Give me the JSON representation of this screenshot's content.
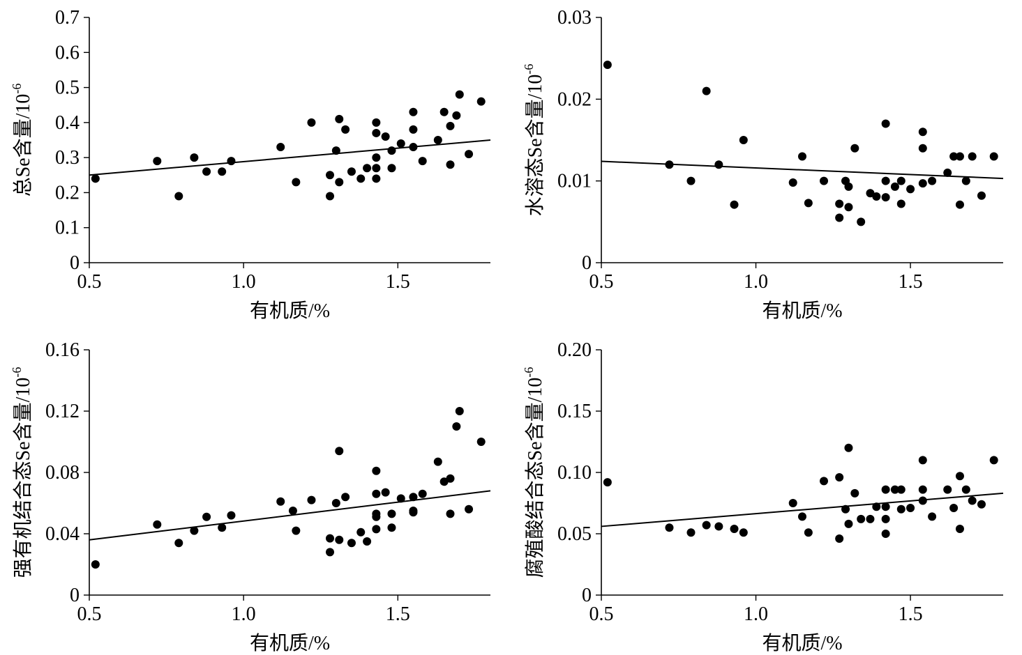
{
  "chart_data": [
    {
      "type": "scatter",
      "xlabel": "有机质/%",
      "ylabel": "总Se含量/10",
      "ylabel_sup": "-6",
      "xlim": [
        0.5,
        1.8
      ],
      "ylim": [
        0,
        0.7
      ],
      "xticks": [
        "0.5",
        "1.0",
        "1.5"
      ],
      "yticks": [
        "0",
        "0.1",
        "0.2",
        "0.3",
        "0.4",
        "0.5",
        "0.6",
        "0.7"
      ],
      "series": [
        {
          "points": [
            [
              0.52,
              0.24
            ],
            [
              0.72,
              0.29
            ],
            [
              0.79,
              0.19
            ],
            [
              0.84,
              0.3
            ],
            [
              0.88,
              0.26
            ],
            [
              0.93,
              0.26
            ],
            [
              0.96,
              0.29
            ],
            [
              1.12,
              0.33
            ],
            [
              1.17,
              0.23
            ],
            [
              1.22,
              0.4
            ],
            [
              1.28,
              0.25
            ],
            [
              1.28,
              0.19
            ],
            [
              1.3,
              0.32
            ],
            [
              1.31,
              0.41
            ],
            [
              1.31,
              0.23
            ],
            [
              1.33,
              0.38
            ],
            [
              1.35,
              0.26
            ],
            [
              1.38,
              0.24
            ],
            [
              1.4,
              0.27
            ],
            [
              1.43,
              0.4
            ],
            [
              1.43,
              0.37
            ],
            [
              1.43,
              0.3
            ],
            [
              1.43,
              0.27
            ],
            [
              1.43,
              0.24
            ],
            [
              1.46,
              0.36
            ],
            [
              1.48,
              0.32
            ],
            [
              1.48,
              0.27
            ],
            [
              1.51,
              0.34
            ],
            [
              1.55,
              0.43
            ],
            [
              1.55,
              0.38
            ],
            [
              1.55,
              0.33
            ],
            [
              1.58,
              0.29
            ],
            [
              1.63,
              0.35
            ],
            [
              1.65,
              0.43
            ],
            [
              1.67,
              0.39
            ],
            [
              1.67,
              0.28
            ],
            [
              1.69,
              0.42
            ],
            [
              1.7,
              0.48
            ],
            [
              1.73,
              0.31
            ],
            [
              1.77,
              0.46
            ]
          ],
          "trendline": [
            [
              0.5,
              0.25
            ],
            [
              1.8,
              0.35
            ]
          ]
        }
      ]
    },
    {
      "type": "scatter",
      "xlabel": "有机质/%",
      "ylabel": "水溶态Se含量/10",
      "ylabel_sup": "-6",
      "xlim": [
        0.5,
        1.8
      ],
      "ylim": [
        0,
        0.03
      ],
      "xticks": [
        "0.5",
        "1.0",
        "1.5"
      ],
      "yticks": [
        "0",
        "0.01",
        "0.02",
        "0.03"
      ],
      "series": [
        {
          "points": [
            [
              0.52,
              0.0242
            ],
            [
              0.72,
              0.012
            ],
            [
              0.79,
              0.01
            ],
            [
              0.84,
              0.021
            ],
            [
              0.88,
              0.012
            ],
            [
              0.93,
              0.0071
            ],
            [
              0.96,
              0.015
            ],
            [
              1.12,
              0.0098
            ],
            [
              1.15,
              0.013
            ],
            [
              1.17,
              0.0073
            ],
            [
              1.22,
              0.01
            ],
            [
              1.27,
              0.0072
            ],
            [
              1.27,
              0.0055
            ],
            [
              1.29,
              0.01
            ],
            [
              1.3,
              0.0093
            ],
            [
              1.3,
              0.0068
            ],
            [
              1.32,
              0.014
            ],
            [
              1.34,
              0.005
            ],
            [
              1.37,
              0.0085
            ],
            [
              1.39,
              0.0081
            ],
            [
              1.42,
              0.017
            ],
            [
              1.42,
              0.01
            ],
            [
              1.42,
              0.008
            ],
            [
              1.45,
              0.0093
            ],
            [
              1.47,
              0.01
            ],
            [
              1.47,
              0.0072
            ],
            [
              1.5,
              0.009
            ],
            [
              1.54,
              0.016
            ],
            [
              1.54,
              0.014
            ],
            [
              1.54,
              0.0097
            ],
            [
              1.57,
              0.01
            ],
            [
              1.62,
              0.011
            ],
            [
              1.64,
              0.013
            ],
            [
              1.66,
              0.013
            ],
            [
              1.66,
              0.0071
            ],
            [
              1.68,
              0.01
            ],
            [
              1.7,
              0.013
            ],
            [
              1.73,
              0.0082
            ],
            [
              1.77,
              0.013
            ]
          ],
          "trendline": [
            [
              0.5,
              0.0124
            ],
            [
              1.8,
              0.0103
            ]
          ]
        }
      ]
    },
    {
      "type": "scatter",
      "xlabel": "有机质/%",
      "ylabel": "强有机结合态Se含量/10",
      "ylabel_sup": "-6",
      "xlim": [
        0.5,
        1.8
      ],
      "ylim": [
        0,
        0.16
      ],
      "xticks": [
        "0.5",
        "1.0",
        "1.5"
      ],
      "yticks": [
        "0",
        "0.04",
        "0.08",
        "0.12",
        "0.16"
      ],
      "series": [
        {
          "points": [
            [
              0.52,
              0.02
            ],
            [
              0.72,
              0.046
            ],
            [
              0.79,
              0.034
            ],
            [
              0.84,
              0.042
            ],
            [
              0.88,
              0.051
            ],
            [
              0.93,
              0.044
            ],
            [
              0.96,
              0.052
            ],
            [
              1.12,
              0.061
            ],
            [
              1.16,
              0.055
            ],
            [
              1.17,
              0.042
            ],
            [
              1.22,
              0.062
            ],
            [
              1.28,
              0.037
            ],
            [
              1.28,
              0.028
            ],
            [
              1.3,
              0.06
            ],
            [
              1.31,
              0.094
            ],
            [
              1.31,
              0.036
            ],
            [
              1.33,
              0.064
            ],
            [
              1.35,
              0.034
            ],
            [
              1.38,
              0.041
            ],
            [
              1.4,
              0.035
            ],
            [
              1.43,
              0.081
            ],
            [
              1.43,
              0.066
            ],
            [
              1.43,
              0.053
            ],
            [
              1.43,
              0.051
            ],
            [
              1.43,
              0.043
            ],
            [
              1.46,
              0.067
            ],
            [
              1.48,
              0.053
            ],
            [
              1.48,
              0.044
            ],
            [
              1.51,
              0.063
            ],
            [
              1.55,
              0.064
            ],
            [
              1.55,
              0.055
            ],
            [
              1.55,
              0.054
            ],
            [
              1.58,
              0.066
            ],
            [
              1.63,
              0.087
            ],
            [
              1.65,
              0.074
            ],
            [
              1.67,
              0.076
            ],
            [
              1.67,
              0.053
            ],
            [
              1.69,
              0.11
            ],
            [
              1.7,
              0.12
            ],
            [
              1.73,
              0.056
            ],
            [
              1.77,
              0.1
            ]
          ],
          "trendline": [
            [
              0.5,
              0.036
            ],
            [
              1.8,
              0.068
            ]
          ]
        }
      ]
    },
    {
      "type": "scatter",
      "xlabel": "有机质/%",
      "ylabel": "腐殖酸结合态Se含量/10",
      "ylabel_sup": "-6",
      "xlim": [
        0.5,
        1.8
      ],
      "ylim": [
        0,
        0.2
      ],
      "xticks": [
        "0.5",
        "1.0",
        "1.5"
      ],
      "yticks": [
        "0",
        "0.05",
        "0.10",
        "0.15",
        "0.20"
      ],
      "series": [
        {
          "points": [
            [
              0.52,
              0.092
            ],
            [
              0.72,
              0.055
            ],
            [
              0.79,
              0.051
            ],
            [
              0.84,
              0.057
            ],
            [
              0.88,
              0.056
            ],
            [
              0.93,
              0.054
            ],
            [
              0.96,
              0.051
            ],
            [
              1.12,
              0.075
            ],
            [
              1.15,
              0.064
            ],
            [
              1.17,
              0.051
            ],
            [
              1.22,
              0.093
            ],
            [
              1.27,
              0.096
            ],
            [
              1.27,
              0.046
            ],
            [
              1.29,
              0.07
            ],
            [
              1.3,
              0.12
            ],
            [
              1.3,
              0.058
            ],
            [
              1.32,
              0.083
            ],
            [
              1.34,
              0.062
            ],
            [
              1.37,
              0.062
            ],
            [
              1.39,
              0.072
            ],
            [
              1.42,
              0.086
            ],
            [
              1.42,
              0.072
            ],
            [
              1.42,
              0.062
            ],
            [
              1.42,
              0.05
            ],
            [
              1.45,
              0.086
            ],
            [
              1.47,
              0.086
            ],
            [
              1.47,
              0.07
            ],
            [
              1.5,
              0.071
            ],
            [
              1.54,
              0.11
            ],
            [
              1.54,
              0.086
            ],
            [
              1.54,
              0.077
            ],
            [
              1.57,
              0.064
            ],
            [
              1.62,
              0.086
            ],
            [
              1.64,
              0.071
            ],
            [
              1.66,
              0.097
            ],
            [
              1.66,
              0.054
            ],
            [
              1.68,
              0.086
            ],
            [
              1.7,
              0.077
            ],
            [
              1.73,
              0.074
            ],
            [
              1.77,
              0.11
            ]
          ],
          "trendline": [
            [
              0.5,
              0.056
            ],
            [
              1.8,
              0.083
            ]
          ]
        }
      ]
    }
  ]
}
